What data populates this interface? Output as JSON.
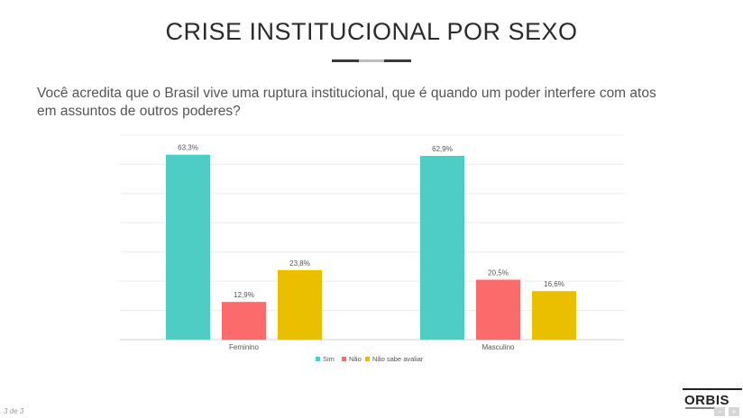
{
  "slide": {
    "title": "CRISE INSTITUCIONAL POR SEXO",
    "question": "Você acredita que o Brasil vive uma ruptura institucional, que é quando um poder interfere com atos em assuntos de outros poderes?",
    "page_indicator": "3 de 3",
    "logo_text": "ORBIS",
    "controls": {
      "minus": "−",
      "plus": "+"
    }
  },
  "chart_data": {
    "type": "bar",
    "categories": [
      "Feminino",
      "Masculino"
    ],
    "series": [
      {
        "name": "Sim",
        "color": "#4ecdc4",
        "values": [
          63.3,
          62.9
        ],
        "labels": [
          "63,3%",
          "62,9%"
        ]
      },
      {
        "name": "Não",
        "color": "#fc6b6b",
        "values": [
          12.9,
          20.5
        ],
        "labels": [
          "12,9%",
          "20,5%"
        ]
      },
      {
        "name": "Não sabe avaliar",
        "color": "#eabf00",
        "values": [
          23.8,
          16.6
        ],
        "labels": [
          "23,8%",
          "16,6%"
        ]
      }
    ],
    "ylim": [
      0,
      70
    ],
    "grid": true,
    "legend": "bottom-center"
  }
}
